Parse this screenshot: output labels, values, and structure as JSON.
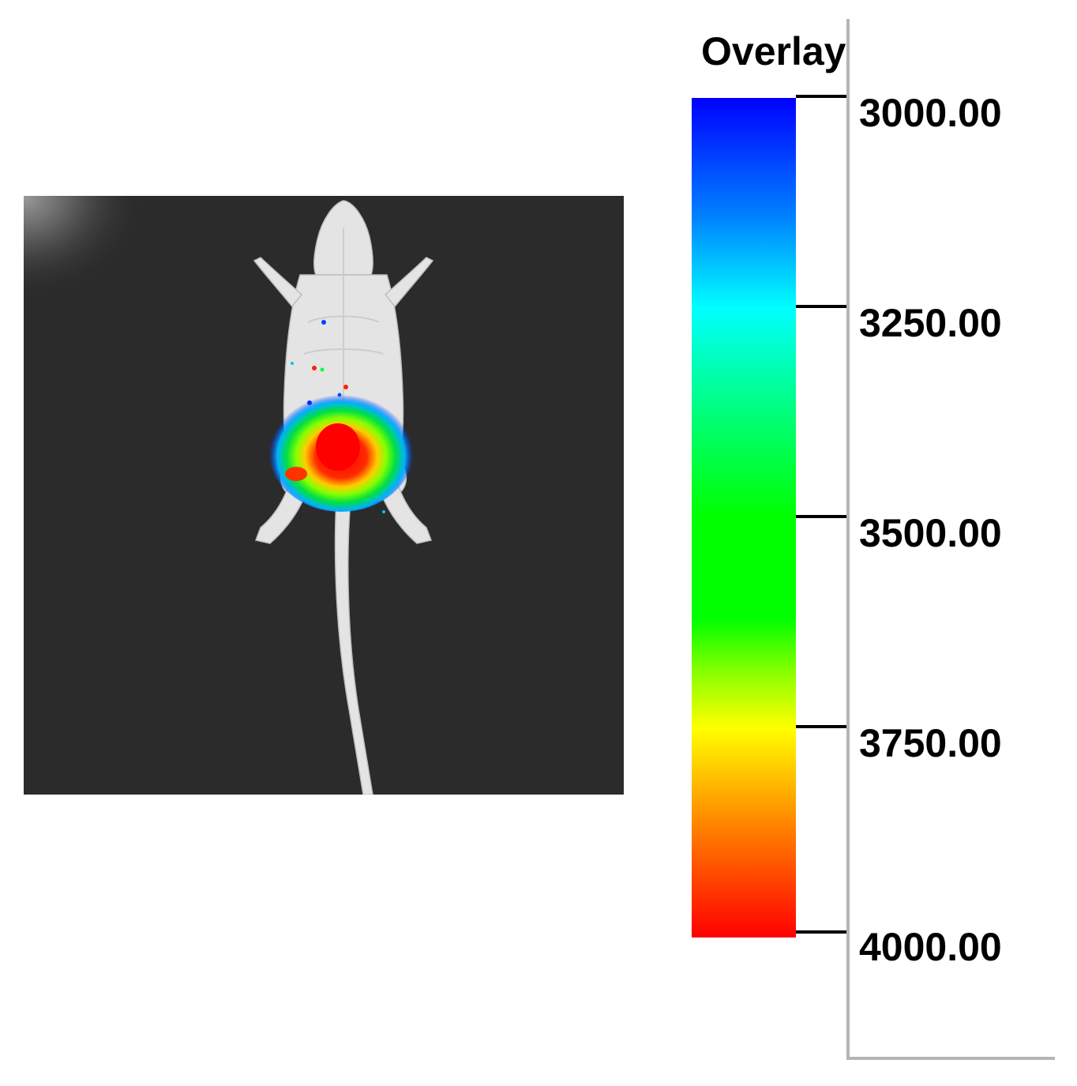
{
  "legend": {
    "title": "Overlay",
    "ticks": [
      "3000.00",
      "3250.00",
      "3500.00",
      "3750.00",
      "4000.00"
    ],
    "range": [
      3000,
      4000
    ],
    "scale_colors": [
      "#0000ff",
      "#00ffff",
      "#00ff00",
      "#ffff00",
      "#ff0000"
    ]
  },
  "image": {
    "background_color": "#2a2a2a",
    "subject_color": "#e6e6e6"
  }
}
